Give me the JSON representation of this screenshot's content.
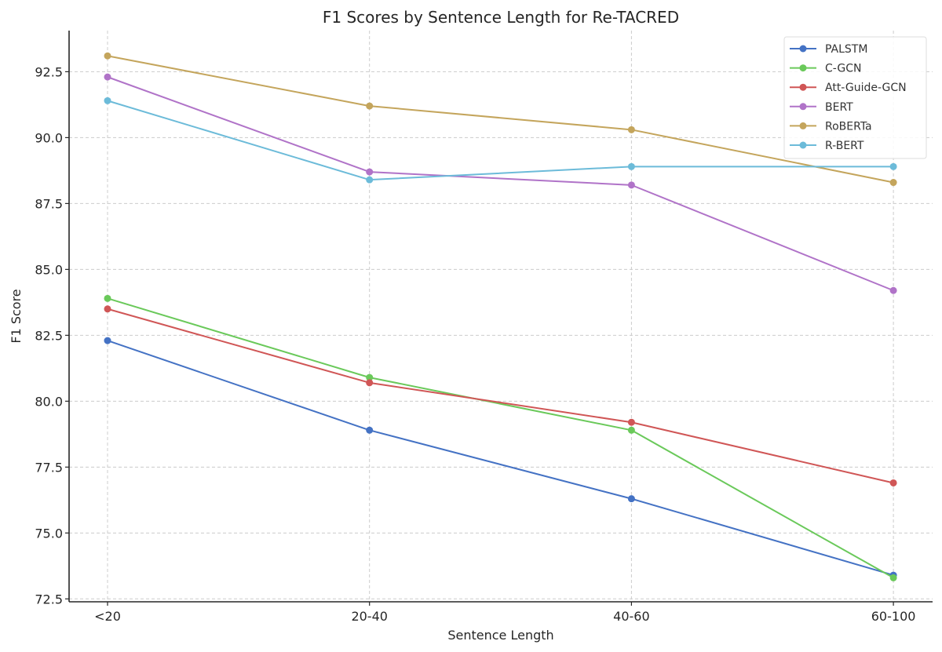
{
  "chart_data": {
    "type": "line",
    "title": "F1 Scores by Sentence Length for Re-TACRED",
    "xlabel": "Sentence Length",
    "ylabel": "F1 Score",
    "categories": [
      "<20",
      "20-40",
      "40-60",
      "60-100"
    ],
    "ylim": [
      72.39,
      94.06
    ],
    "yticks": [
      72.5,
      75.0,
      77.5,
      80.0,
      82.5,
      85.0,
      87.5,
      90.0,
      92.5
    ],
    "ytick_labels": [
      "72.5",
      "75.0",
      "77.5",
      "80.0",
      "82.5",
      "85.0",
      "87.5",
      "90.0",
      "92.5"
    ],
    "grid": true,
    "legend_position": "upper right",
    "markers": true,
    "series": [
      {
        "name": "PALSTM",
        "color": "#4472c4",
        "values": [
          82.3,
          78.9,
          76.3,
          73.4
        ]
      },
      {
        "name": "C-GCN",
        "color": "#6ac95a",
        "values": [
          83.9,
          80.9,
          78.9,
          73.3
        ]
      },
      {
        "name": "Att-Guide-GCN",
        "color": "#d05656",
        "values": [
          83.5,
          80.7,
          79.2,
          76.9
        ]
      },
      {
        "name": "BERT",
        "color": "#b073c8",
        "values": [
          92.3,
          88.7,
          88.2,
          84.2
        ]
      },
      {
        "name": "RoBERTa",
        "color": "#c4a55c",
        "values": [
          93.1,
          91.2,
          90.3,
          88.3
        ]
      },
      {
        "name": "R-BERT",
        "color": "#6cbbd9",
        "values": [
          91.4,
          88.4,
          88.9,
          88.9
        ]
      }
    ]
  }
}
